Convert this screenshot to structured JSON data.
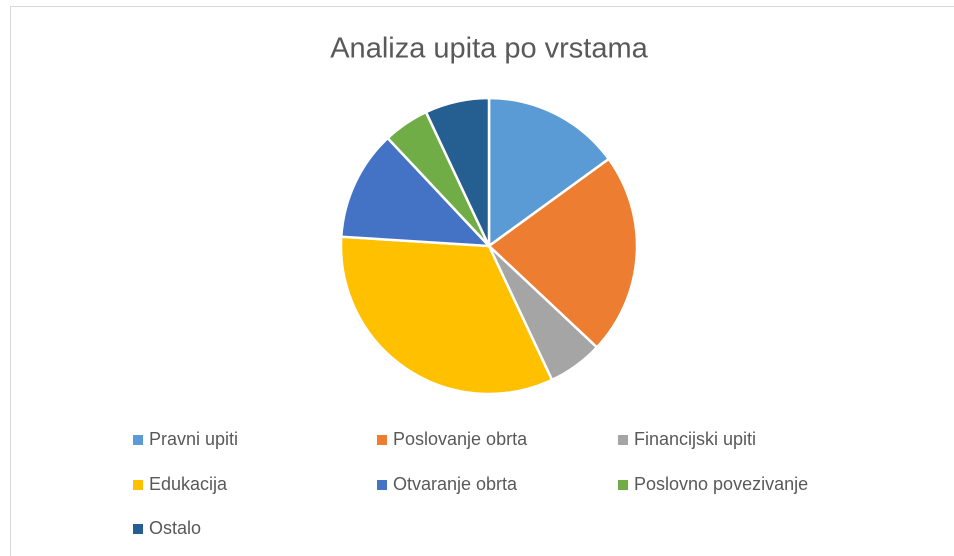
{
  "chart_data": {
    "type": "pie",
    "title": "Analiza upita po vrstama",
    "categories": [
      "Pravni upiti",
      "Poslovanje obrta",
      "Financijski upiti",
      "Edukacija",
      "Otvaranje obrta",
      "Poslovno povezivanje",
      "Ostalo"
    ],
    "values": [
      15,
      22,
      6,
      33,
      12,
      5,
      7
    ],
    "colors": [
      "#5b9bd5",
      "#ed7d31",
      "#a5a5a5",
      "#ffc000",
      "#4472c4",
      "#70ad47",
      "#255e91"
    ],
    "legend": "bottom"
  }
}
